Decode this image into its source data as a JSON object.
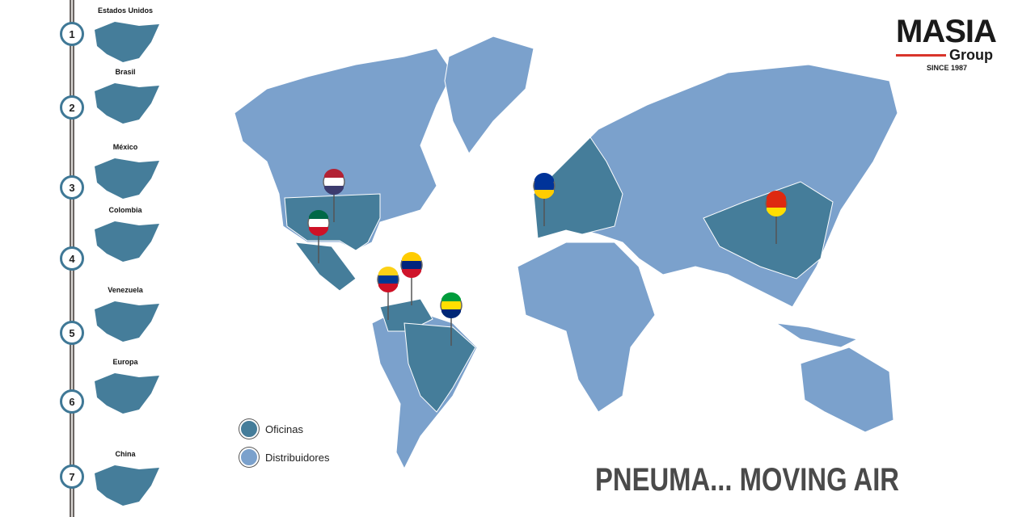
{
  "sidebar": {
    "items": [
      {
        "number": "1",
        "label": "Estados Unidos"
      },
      {
        "number": "2",
        "label": "Brasil"
      },
      {
        "number": "3",
        "label": "México"
      },
      {
        "number": "4",
        "label": "Colombia"
      },
      {
        "number": "5",
        "label": "Venezuela"
      },
      {
        "number": "6",
        "label": "Europa"
      },
      {
        "number": "7",
        "label": "China"
      }
    ]
  },
  "logo": {
    "name": "MASIA",
    "sub": "Group",
    "since": "SINCE 1987"
  },
  "legend": [
    {
      "label": "Oficinas",
      "color": "#457d9a"
    },
    {
      "label": "Distribuidores",
      "color": "#7ba1cc"
    }
  ],
  "slogan": "PNEUMA... MOVING AIR",
  "colors": {
    "office": "#457d9a",
    "distributor": "#7ba1cc",
    "accent": "#d9342b"
  },
  "pins": [
    {
      "country": "Estados Unidos",
      "flag": "us-flag"
    },
    {
      "country": "México",
      "flag": "mexico-flag"
    },
    {
      "country": "Venezuela",
      "flag": "venezuela-flag"
    },
    {
      "country": "Colombia",
      "flag": "colombia-flag"
    },
    {
      "country": "Brasil",
      "flag": "brazil-flag"
    },
    {
      "country": "Europa",
      "flag": "eu-flag"
    },
    {
      "country": "China",
      "flag": "china-flag"
    }
  ]
}
